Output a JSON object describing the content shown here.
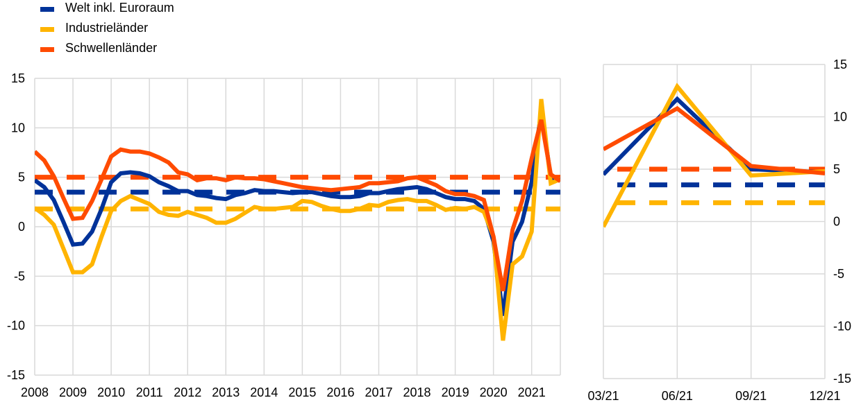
{
  "colors": {
    "welt": "#003299",
    "industrie": "#FFB400",
    "schwellen": "#FF4B00",
    "grid": "#D9D9D9"
  },
  "legend": [
    {
      "label": "Welt inkl. Euroraum",
      "key": "welt"
    },
    {
      "label": "Industrieländer",
      "key": "industrie"
    },
    {
      "label": "Schwellenländer",
      "key": "schwellen"
    }
  ],
  "chart_data": [
    {
      "type": "line",
      "title": "",
      "xlabel": "",
      "ylabel": "",
      "x_start": 2008,
      "x_step": 0.25,
      "xlim": [
        2008,
        2021.75
      ],
      "ylim": [
        -15,
        15
      ],
      "yticks": [
        15,
        10,
        5,
        0,
        -5,
        -10,
        -15
      ],
      "xticks": [
        2008,
        2009,
        2010,
        2011,
        2012,
        2013,
        2014,
        2015,
        2016,
        2017,
        2018,
        2019,
        2020,
        2021
      ],
      "xtick_labels": [
        "2008",
        "2009",
        "2010",
        "2011",
        "2012",
        "2013",
        "2014",
        "2015",
        "2016",
        "2017",
        "2018",
        "2019",
        "2020",
        "2021"
      ],
      "yaxis_side": "left",
      "grid": true,
      "series": [
        {
          "name": "Welt inkl. Euroraum",
          "key": "welt",
          "values": [
            4.7,
            4.0,
            2.7,
            0.5,
            -1.8,
            -1.7,
            -0.5,
            1.8,
            4.5,
            5.4,
            5.5,
            5.4,
            5.1,
            4.5,
            4.1,
            3.6,
            3.6,
            3.2,
            3.1,
            2.9,
            2.8,
            3.2,
            3.4,
            3.7,
            3.6,
            3.6,
            3.5,
            3.4,
            3.5,
            3.5,
            3.3,
            3.1,
            3.0,
            3.0,
            3.1,
            3.4,
            3.4,
            3.6,
            3.8,
            3.9,
            4.0,
            3.8,
            3.4,
            3.0,
            2.8,
            2.8,
            2.6,
            1.8,
            -1.5,
            -9.0,
            -1.5,
            0.5,
            4.5,
            11.7,
            5.0,
            4.7
          ]
        },
        {
          "name": "Industrieländer",
          "key": "industrie",
          "values": [
            1.9,
            1.2,
            0.2,
            -2.2,
            -4.6,
            -4.6,
            -3.8,
            -1.0,
            1.6,
            2.6,
            3.1,
            2.7,
            2.3,
            1.5,
            1.2,
            1.1,
            1.5,
            1.2,
            0.9,
            0.4,
            0.4,
            0.8,
            1.4,
            2.0,
            1.8,
            1.8,
            1.9,
            2.0,
            2.6,
            2.5,
            2.1,
            1.8,
            1.6,
            1.6,
            1.8,
            2.2,
            2.1,
            2.5,
            2.7,
            2.8,
            2.6,
            2.6,
            2.2,
            1.7,
            1.9,
            1.8,
            2.0,
            1.5,
            -1.0,
            -11.5,
            -3.8,
            -3.0,
            -0.5,
            12.9,
            4.4,
            4.8
          ]
        },
        {
          "name": "Schwellenländer",
          "key": "schwellen",
          "values": [
            7.6,
            6.7,
            5.1,
            2.9,
            0.8,
            0.9,
            2.6,
            4.8,
            7.1,
            7.8,
            7.6,
            7.6,
            7.4,
            7.0,
            6.5,
            5.5,
            5.3,
            4.7,
            4.9,
            4.9,
            4.7,
            5.0,
            4.9,
            4.9,
            4.8,
            4.6,
            4.4,
            4.2,
            4.0,
            3.9,
            3.8,
            3.7,
            3.8,
            3.9,
            4.0,
            4.4,
            4.4,
            4.5,
            4.6,
            4.9,
            5.0,
            4.6,
            4.2,
            3.6,
            3.3,
            3.3,
            3.1,
            2.7,
            -1.0,
            -6.5,
            -0.3,
            2.6,
            6.9,
            10.8,
            5.3,
            4.6
          ]
        }
      ],
      "averages": [
        {
          "name": "Welt inkl. Euroraum Durchschnitt",
          "key": "welt",
          "value": 3.5
        },
        {
          "name": "Industrieländer Durchschnitt",
          "key": "industrie",
          "value": 1.8
        },
        {
          "name": "Schwellenländer Durchschnitt",
          "key": "schwellen",
          "value": 5.0
        }
      ]
    },
    {
      "type": "line",
      "title": "",
      "xlabel": "",
      "ylabel": "",
      "categories": [
        "03/21",
        "06/21",
        "09/21",
        "12/21"
      ],
      "ylim": [
        -15,
        15
      ],
      "yticks": [
        15,
        10,
        5,
        0,
        -5,
        -10,
        -15
      ],
      "yaxis_side": "right",
      "grid": true,
      "series": [
        {
          "name": "Welt inkl. Euroraum",
          "key": "welt",
          "values": [
            4.5,
            11.7,
            5.0,
            4.7
          ]
        },
        {
          "name": "Industrieländer",
          "key": "industrie",
          "values": [
            -0.5,
            12.9,
            4.4,
            4.8
          ]
        },
        {
          "name": "Schwellenländer",
          "key": "schwellen",
          "values": [
            6.9,
            10.8,
            5.3,
            4.6
          ]
        }
      ],
      "averages": [
        {
          "name": "Welt inkl. Euroraum Durchschnitt",
          "key": "welt",
          "value": 3.5
        },
        {
          "name": "Industrieländer Durchschnitt",
          "key": "industrie",
          "value": 1.8
        },
        {
          "name": "Schwellenländer Durchschnitt",
          "key": "schwellen",
          "value": 5.0
        }
      ]
    }
  ]
}
